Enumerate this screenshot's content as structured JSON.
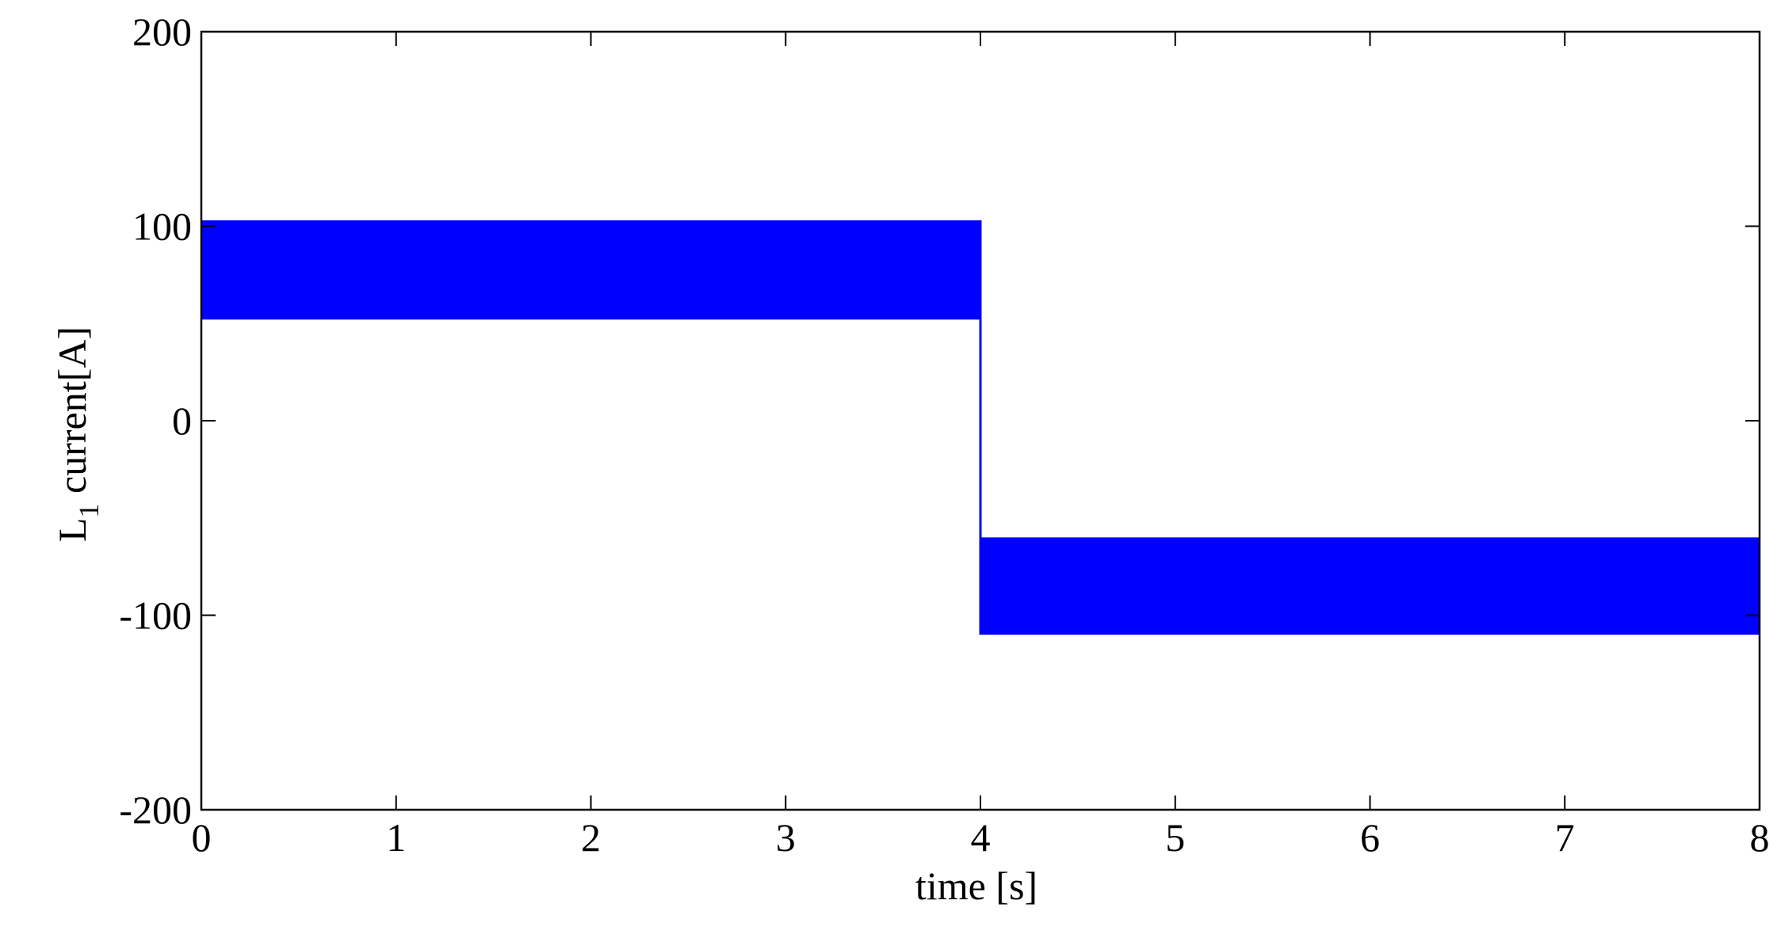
{
  "chart_data": {
    "type": "area",
    "xlabel": "time [s]",
    "ylabel": {
      "main": "L",
      "subscript": "1",
      "rest": " current[A]"
    },
    "xlim": [
      0,
      8
    ],
    "ylim": [
      -200,
      200
    ],
    "x_ticks": [
      "0",
      "1",
      "2",
      "3",
      "4",
      "5",
      "6",
      "7",
      "8"
    ],
    "y_ticks": [
      "200",
      "100",
      "0",
      "-100",
      "-200"
    ],
    "grid": false,
    "series": [
      {
        "color": "#0000ff",
        "segments": [
          {
            "x_start": 0,
            "x_end": 4,
            "y_min": 52,
            "y_max": 103
          },
          {
            "x_start": 4,
            "x_end": 8,
            "y_min": -110,
            "y_max": -60
          }
        ]
      }
    ]
  }
}
